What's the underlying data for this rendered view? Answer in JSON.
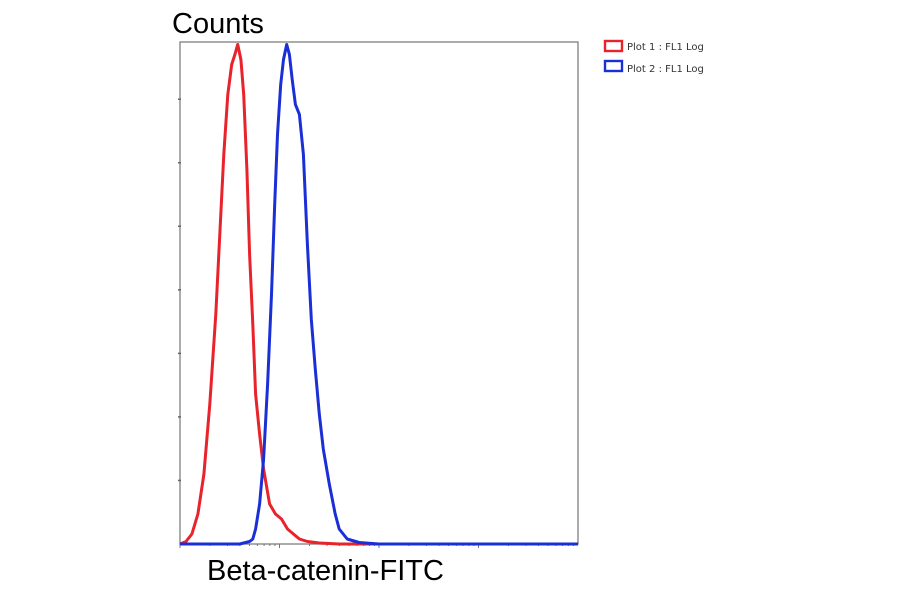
{
  "chart_data": {
    "type": "line",
    "title": "",
    "xlabel": "Beta-catenin-FITC",
    "ylabel": "Counts",
    "x_scale": "log",
    "xlim": [
      0,
      100
    ],
    "ylim": [
      0,
      100
    ],
    "grid": false,
    "legend_position": "top-right outside",
    "series": [
      {
        "name": "Plot 1 : FL1 Log",
        "color": "#e8232b",
        "x": [
          0,
          1.5,
          3,
          4.5,
          6,
          7.5,
          9,
          10,
          11,
          12,
          13,
          13.8,
          14.5,
          15.3,
          16,
          16.8,
          17.5,
          18.3,
          19,
          20,
          21,
          22.5,
          24,
          25.5,
          27,
          28.5,
          30,
          32,
          35,
          40,
          50,
          60,
          80,
          100
        ],
        "values": [
          0,
          0.5,
          2,
          6,
          14,
          28,
          46,
          62,
          78,
          90,
          96,
          98,
          100,
          97,
          90,
          75,
          58,
          44,
          30,
          22,
          15,
          8,
          6,
          5,
          3,
          2,
          1,
          0.5,
          0.2,
          0,
          0,
          0,
          0,
          0
        ]
      },
      {
        "name": "Plot 2 : FL1 Log",
        "color": "#1a2fd6",
        "x": [
          0,
          10,
          15,
          17.5,
          18.3,
          19,
          20,
          21,
          22,
          23,
          23.8,
          24.5,
          25.3,
          26,
          26.8,
          27.5,
          28.2,
          29,
          30,
          31,
          32,
          33,
          34,
          35,
          36,
          37.5,
          39,
          40,
          42,
          45,
          50,
          60,
          80,
          100
        ],
        "values": [
          0,
          0,
          0,
          0.5,
          1,
          3,
          8,
          17,
          32,
          50,
          68,
          82,
          92,
          97,
          100,
          98,
          93,
          88,
          86,
          78,
          60,
          45,
          35,
          26,
          19,
          12,
          6,
          3,
          1,
          0.3,
          0,
          0,
          0,
          0
        ]
      }
    ]
  }
}
